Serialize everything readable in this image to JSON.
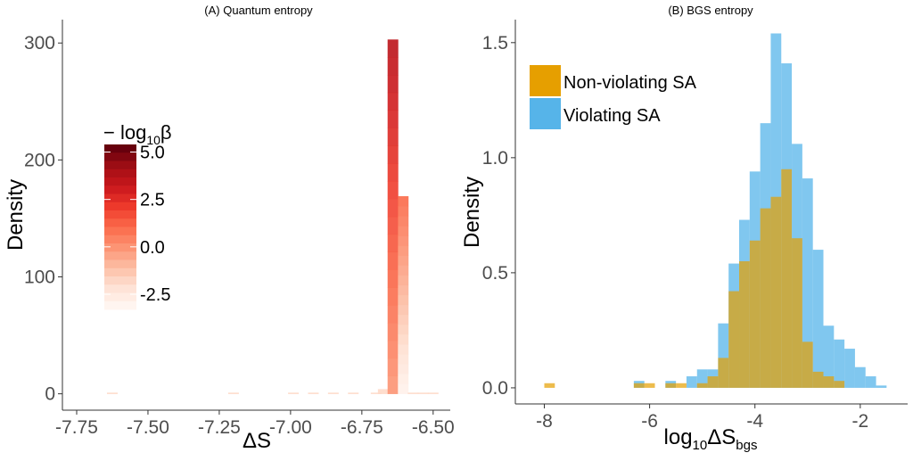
{
  "panels": [
    {
      "title": "(A) Quantum entropy",
      "xlabel": "ΔS",
      "ylabel": "Density",
      "x_ticks": [
        "-7.75",
        "-7.50",
        "-7.25",
        "-7.00",
        "-6.75",
        "-6.50"
      ],
      "y_ticks": [
        "0",
        "100",
        "200",
        "300"
      ],
      "colorbar": {
        "title_prefix": "− log",
        "title_sub": "10",
        "title_suffix": "β",
        "ticks": [
          "5.0",
          "2.5",
          "0.0",
          "-2.5"
        ]
      }
    },
    {
      "title": "(B) BGS entropy",
      "xlabel_main": "log",
      "xlabel_sub1": "10",
      "xlabel_mid": "ΔS",
      "xlabel_sub2": "bgs",
      "ylabel": "Density",
      "x_ticks": [
        "-8",
        "-6",
        "-4",
        "-2"
      ],
      "y_ticks": [
        "0.0",
        "0.5",
        "1.0",
        "1.5"
      ],
      "legend": [
        "Non-violating SA",
        "Violating SA"
      ]
    }
  ],
  "colors": {
    "orange": "#e69f00",
    "blue": "#56b4e9",
    "dark_red": "#67000d",
    "light_red": "#fff5f0"
  },
  "chart_data": [
    {
      "type": "bar",
      "subtype": "stacked-histogram",
      "title": "(A) Quantum entropy",
      "xlabel": "ΔS",
      "ylabel": "Density",
      "xlim": [
        -7.8,
        -6.44
      ],
      "ylim": [
        -14,
        320
      ],
      "bin_width": 0.0375,
      "bins": [
        {
          "x": -7.625,
          "total": 1
        },
        {
          "x": -7.2,
          "total": 1
        },
        {
          "x": -6.99,
          "total": 1
        },
        {
          "x": -6.92,
          "total": 1
        },
        {
          "x": -6.85,
          "total": 1
        },
        {
          "x": -6.78,
          "total": 1
        },
        {
          "x": -6.7,
          "total": 1
        },
        {
          "x": -6.675,
          "total": 4
        },
        {
          "x": -6.641,
          "total": 303
        },
        {
          "x": -6.605,
          "total": 169
        },
        {
          "x": -6.57,
          "total": 1
        },
        {
          "x": -6.535,
          "total": 1
        },
        {
          "x": -6.5,
          "total": 1
        }
      ],
      "colorbar_title": "− log10 β",
      "colorbar_ticks": [
        5.0,
        2.5,
        0.0,
        -2.5
      ],
      "colorbar_range": [
        -3.3,
        5.4
      ]
    },
    {
      "type": "bar",
      "subtype": "overlaid-histogram",
      "title": "(B) BGS entropy",
      "xlabel": "log10 ΔS_bgs",
      "ylabel": "Density",
      "xlim": [
        -8.55,
        -1.1
      ],
      "ylim": [
        -0.07,
        1.6
      ],
      "bin_width": 0.2,
      "series": [
        {
          "name": "Violating SA",
          "bins": [
            {
              "x": -6.2,
              "value": 0.03
            },
            {
              "x": -5.6,
              "value": 0.03
            },
            {
              "x": -5.2,
              "value": 0.05
            },
            {
              "x": -5.0,
              "value": 0.08
            },
            {
              "x": -4.8,
              "value": 0.08
            },
            {
              "x": -4.6,
              "value": 0.28
            },
            {
              "x": -4.4,
              "value": 0.54
            },
            {
              "x": -4.2,
              "value": 0.73
            },
            {
              "x": -4.0,
              "value": 0.94
            },
            {
              "x": -3.8,
              "value": 1.15
            },
            {
              "x": -3.6,
              "value": 1.54
            },
            {
              "x": -3.4,
              "value": 1.41
            },
            {
              "x": -3.2,
              "value": 1.06
            },
            {
              "x": -3.0,
              "value": 0.91
            },
            {
              "x": -2.8,
              "value": 0.6
            },
            {
              "x": -2.6,
              "value": 0.27
            },
            {
              "x": -2.4,
              "value": 0.21
            },
            {
              "x": -2.2,
              "value": 0.17
            },
            {
              "x": -2.0,
              "value": 0.09
            },
            {
              "x": -1.8,
              "value": 0.05
            },
            {
              "x": -1.6,
              "value": 0.01
            }
          ]
        },
        {
          "name": "Non-violating SA",
          "bins": [
            {
              "x": -7.9,
              "value": 0.02
            },
            {
              "x": -6.2,
              "value": 0.02
            },
            {
              "x": -6.0,
              "value": 0.02
            },
            {
              "x": -5.6,
              "value": 0.02
            },
            {
              "x": -5.4,
              "value": 0.02
            },
            {
              "x": -5.0,
              "value": 0.02
            },
            {
              "x": -4.8,
              "value": 0.05
            },
            {
              "x": -4.6,
              "value": 0.13
            },
            {
              "x": -4.4,
              "value": 0.42
            },
            {
              "x": -4.2,
              "value": 0.55
            },
            {
              "x": -4.0,
              "value": 0.64
            },
            {
              "x": -3.8,
              "value": 0.78
            },
            {
              "x": -3.6,
              "value": 0.83
            },
            {
              "x": -3.4,
              "value": 0.95
            },
            {
              "x": -3.2,
              "value": 0.65
            },
            {
              "x": -3.0,
              "value": 0.2
            },
            {
              "x": -2.8,
              "value": 0.07
            },
            {
              "x": -2.6,
              "value": 0.05
            },
            {
              "x": -2.4,
              "value": 0.03
            }
          ]
        }
      ],
      "legend_position": "top-left"
    }
  ]
}
